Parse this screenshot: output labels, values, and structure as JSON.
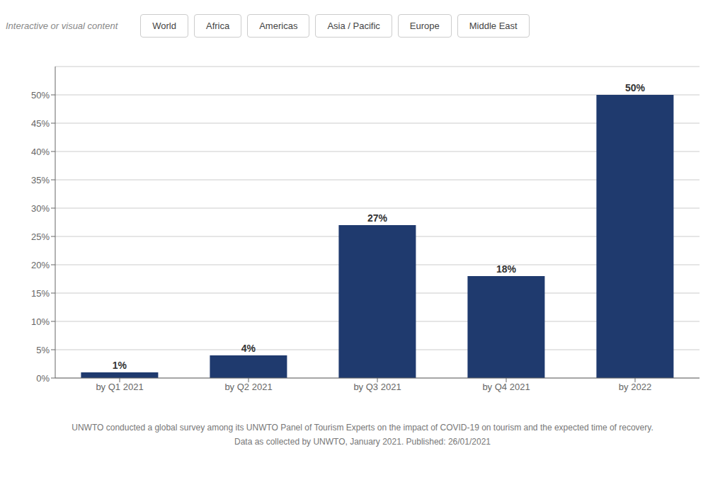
{
  "chart_data": {
    "type": "bar",
    "categories": [
      "by Q1 2021",
      "by Q2 2021",
      "by Q3 2021",
      "by Q4 2021",
      "by 2022"
    ],
    "values": [
      1,
      4,
      27,
      18,
      50
    ],
    "value_labels": [
      "1%",
      "4%",
      "27%",
      "18%",
      "50%"
    ],
    "data_labels": true,
    "color": "#1f3a6e",
    "ylim": [
      0,
      55
    ],
    "yticks": [
      {
        "value": 0,
        "label": "0%"
      },
      {
        "value": 5,
        "label": "5%"
      },
      {
        "value": 10,
        "label": "10%"
      },
      {
        "value": 15,
        "label": "15%"
      },
      {
        "value": 20,
        "label": "20%"
      },
      {
        "value": 25,
        "label": "25%"
      },
      {
        "value": 30,
        "label": "30%"
      },
      {
        "value": 35,
        "label": "35%"
      },
      {
        "value": 40,
        "label": "40%"
      },
      {
        "value": 45,
        "label": "45%"
      },
      {
        "value": 50,
        "label": "50%"
      }
    ],
    "grid": true,
    "annotations": [
      "Interactive or visual content",
      "World",
      "Africa",
      "Americas",
      "Asia / Pacific",
      "Europe",
      "Middle East",
      "UNWTO conducted a global survey among its UNWTO Panel of Tourism Experts on the impact of COVID-19 on tourism and the expected time of recovery.",
      "Data as collected by UNWTO, January 2021. Published: 26/01/2021"
    ]
  }
}
